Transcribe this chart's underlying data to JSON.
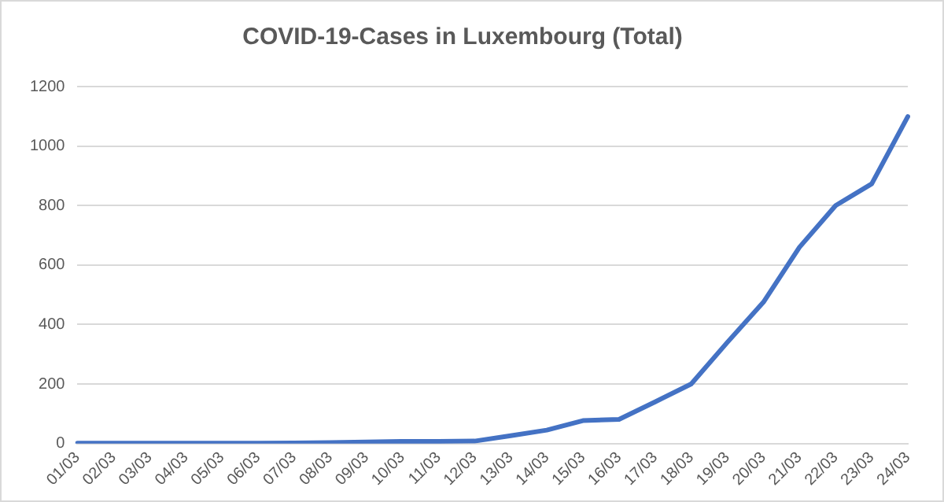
{
  "chart_data": {
    "type": "line",
    "title": "COVID-19-Cases in Luxembourg (Total)",
    "categories": [
      "01/03",
      "02/03",
      "03/03",
      "04/03",
      "05/03",
      "06/03",
      "07/03",
      "08/03",
      "09/03",
      "10/03",
      "11/03",
      "12/03",
      "13/03",
      "14/03",
      "15/03",
      "16/03",
      "17/03",
      "18/03",
      "19/03",
      "20/03",
      "21/03",
      "22/03",
      "23/03",
      "24/03"
    ],
    "series": [
      {
        "color": "#4472c4",
        "values": [
          1,
          1,
          1,
          1,
          1,
          1,
          2,
          3,
          5,
          7,
          7,
          8,
          26,
          45,
          77,
          81,
          140,
          200,
          340,
          475,
          660,
          800,
          873,
          1099
        ]
      }
    ],
    "ylim": [
      0,
      1200
    ],
    "yticks": [
      0,
      200,
      400,
      600,
      800,
      1000,
      1200
    ],
    "grid": "y",
    "legend": false,
    "marker": "none",
    "line_style": "solid"
  }
}
